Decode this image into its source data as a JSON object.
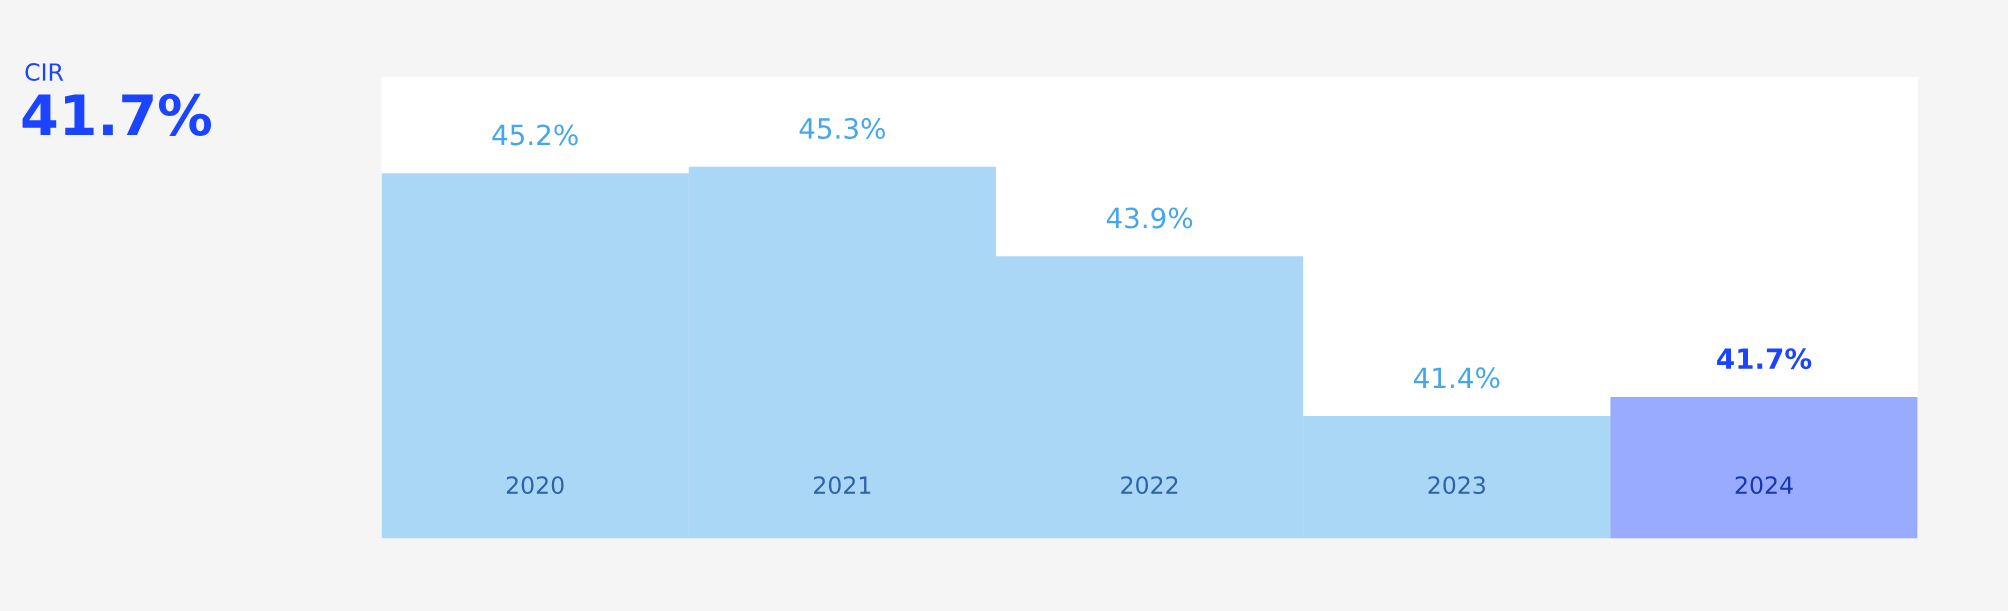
{
  "chart_data": {
    "type": "bar",
    "title": "CIR",
    "subtitle": "41.7%",
    "categories": [
      "2020",
      "2021",
      "2022",
      "2023",
      "2024"
    ],
    "values": [
      45.2,
      45.3,
      43.9,
      41.4,
      41.7
    ],
    "colors": [
      "#45a6ee",
      "#45a6ee",
      "#45a6ee",
      "#45a6ee",
      "#1a44ff"
    ],
    "value_labels": [
      "45.2%",
      "45.3%",
      "43.9%",
      "41.4%",
      "41.7%"
    ],
    "tick_labels": "x",
    "grid": false,
    "legend": false
  }
}
